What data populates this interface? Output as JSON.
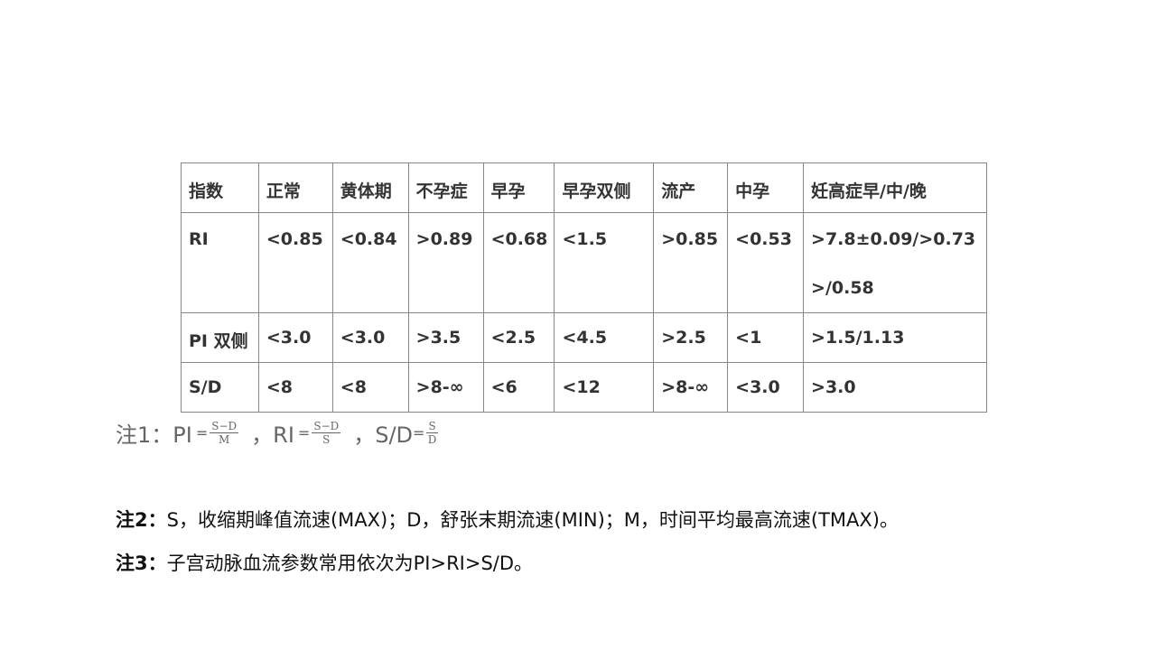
{
  "table": {
    "headers": [
      "指数",
      "正常",
      "黄体期",
      "不孕症",
      "早孕",
      "早孕双侧",
      "流产",
      "中孕",
      "妊高症早/中/晚"
    ],
    "rows": [
      [
        "RI",
        "<0.85",
        "<0.84",
        ">0.89",
        "<0.68",
        "<1.5",
        ">0.85",
        "<0.53",
        ">7.8±0.09/>0.73 >/0.58"
      ],
      [
        "PI 双侧",
        "<3.0",
        "<3.0",
        ">3.5",
        "<2.5",
        "<4.5",
        ">2.5",
        "<1",
        ">1.5/1.13"
      ],
      [
        "S/D",
        "<8",
        "<8",
        ">8-∞",
        "<6",
        "<12",
        ">8-∞",
        "<3.0",
        ">3.0"
      ]
    ]
  },
  "note1": {
    "label": "注1：PI",
    "pi_num": "S−D",
    "pi_den": "M",
    "ri_label": "，RI",
    "ri_num": "S−D",
    "ri_den": "S",
    "sd_label": "，S/D",
    "sd_num": "S",
    "sd_den": "D",
    "eq": "="
  },
  "note2": {
    "label": "注2：",
    "text": "S，收缩期峰值流速(MAX)；D，舒张末期流速(MIN)；M，时间平均最高流速(TMAX)。"
  },
  "note3": {
    "label": "注3：",
    "text": "子宫动脉血流参数常用依次为PI>RI>S/D。"
  }
}
